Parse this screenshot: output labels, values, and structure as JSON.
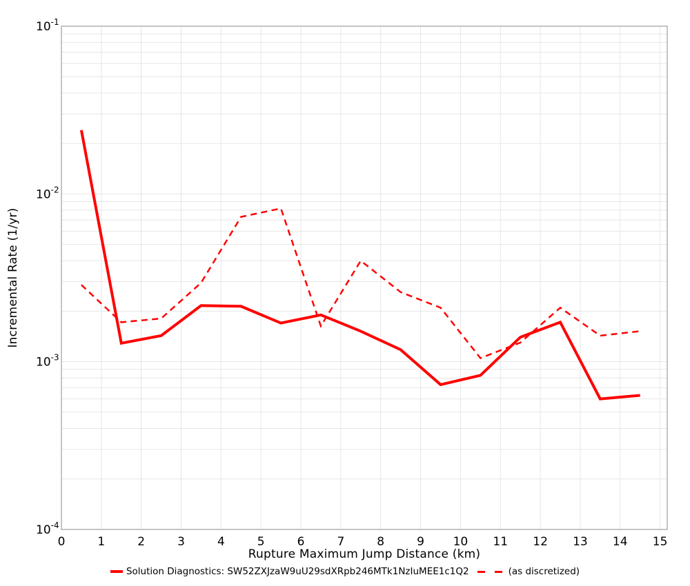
{
  "chart_data": {
    "type": "line",
    "title": "",
    "xlabel": "Rupture Maximum Jump Distance (km)",
    "ylabel": "Incremental Rate (1/yr)",
    "yscale": "log",
    "grid": true,
    "legend_position": "bottom",
    "xlim": [
      0,
      15.18
    ],
    "ylim": [
      0.0001,
      0.1
    ],
    "x_ticks": [
      0,
      1,
      2,
      3,
      4,
      5,
      6,
      7,
      8,
      9,
      10,
      11,
      12,
      13,
      14,
      15
    ],
    "y_tick_exponents": [
      -1,
      -2,
      -3,
      -4
    ],
    "y_tick_base": "10",
    "x": [
      0.5,
      1.5,
      2.5,
      3.5,
      4.5,
      5.5,
      6.5,
      7.5,
      8.5,
      9.5,
      10.5,
      11.5,
      12.5,
      13.5,
      14.5
    ],
    "series": [
      {
        "name": "Solution Diagnostics: SW52ZXJzaW9uU29sdXRpb246MTk1NzIuMEE1c1Q2",
        "style": "solid",
        "color": "#ff0000",
        "values": [
          0.024,
          0.00129,
          0.00143,
          0.00216,
          0.00214,
          0.0017,
          0.0019,
          0.00152,
          0.00118,
          0.00073,
          0.00083,
          0.0014,
          0.00172,
          0.0006,
          0.00063
        ]
      },
      {
        "name": "(as discretized)",
        "style": "dashed",
        "color": "#ff0000",
        "values": [
          0.00287,
          0.00172,
          0.00181,
          0.00295,
          0.0073,
          0.0082,
          0.00163,
          0.004,
          0.0026,
          0.0021,
          0.00105,
          0.0013,
          0.0021,
          0.00143,
          0.00152
        ]
      }
    ],
    "colors": {
      "line": "#ff0000",
      "grid": "#e6e6e6",
      "frame": "#b0b0b0",
      "text": "#000000",
      "background": "#ffffff"
    }
  }
}
